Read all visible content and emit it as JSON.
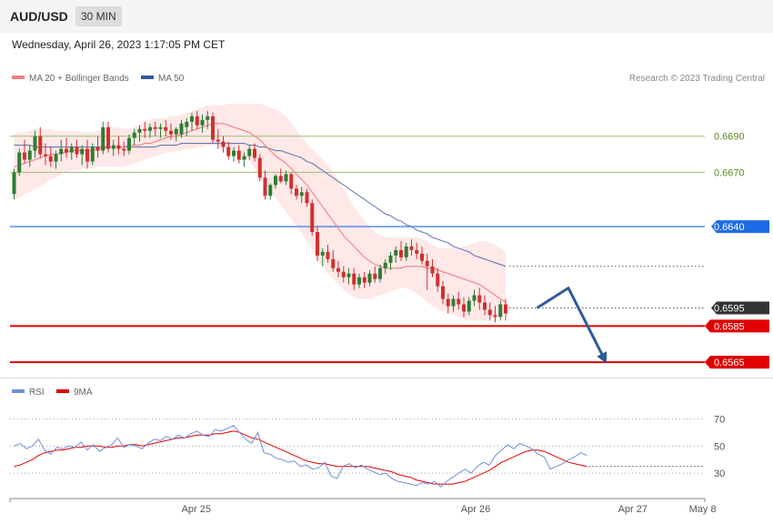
{
  "header": {
    "symbol": "AUD/USD",
    "timeframe": "30 MIN"
  },
  "timestamp": "Wednesday, April 26, 2023 1:17:05 PM CET",
  "legend": {
    "ma20_label": "MA 20 + Bollinger Bands",
    "ma50_label": "MA 50",
    "rsi_label": "RSI",
    "ma9_label": "9MA"
  },
  "credit": "Research © 2023 Trading Central",
  "colors": {
    "bull": "#2e7d32",
    "bear": "#d32f2f",
    "band_fill": "#fde0e0",
    "ma20": "#f08080",
    "ma50": "#5a6fa6",
    "resistance": "#a7c47f",
    "pivot": "#1e6be6",
    "support": "#e00000",
    "arrow": "#2f5b9b",
    "rsi": "#6f8fd8",
    "rsi_ma": "#e00000"
  },
  "chart_data": {
    "type": "candlestick",
    "y_range": [
      0.6555,
      0.6715
    ],
    "last_price": {
      "value": 0.6595,
      "label": "0.6595"
    },
    "levels": [
      {
        "value": 0.669,
        "label": "0.6690",
        "kind": "resistance"
      },
      {
        "value": 0.667,
        "label": "0.6670",
        "kind": "resistance"
      },
      {
        "value": 0.664,
        "label": "0.6640",
        "kind": "pivot"
      },
      {
        "value": 0.6585,
        "label": "0.6585",
        "kind": "support"
      },
      {
        "value": 0.6565,
        "label": "0.6565",
        "kind": "support"
      }
    ],
    "x_labels": [
      {
        "label": "Apr 25",
        "index": 32
      },
      {
        "label": "Apr 26",
        "index": 80
      },
      {
        "label": "Apr 27",
        "index": 107
      },
      {
        "label": "May 8",
        "index": 119
      }
    ],
    "candles": [
      [
        0.6658,
        0.6672,
        0.6655,
        0.667
      ],
      [
        0.667,
        0.6683,
        0.6668,
        0.6681
      ],
      [
        0.6681,
        0.6688,
        0.6675,
        0.6677
      ],
      [
        0.6677,
        0.6685,
        0.6673,
        0.6682
      ],
      [
        0.6682,
        0.6693,
        0.6678,
        0.669
      ],
      [
        0.669,
        0.6695,
        0.6678,
        0.668
      ],
      [
        0.668,
        0.6686,
        0.6674,
        0.6679
      ],
      [
        0.6679,
        0.6684,
        0.6673,
        0.6676
      ],
      [
        0.6676,
        0.6682,
        0.6672,
        0.668
      ],
      [
        0.668,
        0.6688,
        0.6676,
        0.6683
      ],
      [
        0.6683,
        0.6689,
        0.6678,
        0.6681
      ],
      [
        0.6681,
        0.6686,
        0.6677,
        0.6684
      ],
      [
        0.6684,
        0.6688,
        0.6678,
        0.668
      ],
      [
        0.668,
        0.6685,
        0.6674,
        0.6683
      ],
      [
        0.6683,
        0.6688,
        0.6672,
        0.6676
      ],
      [
        0.6676,
        0.6686,
        0.6674,
        0.6684
      ],
      [
        0.6684,
        0.669,
        0.6678,
        0.6682
      ],
      [
        0.6682,
        0.6698,
        0.668,
        0.6695
      ],
      [
        0.6695,
        0.6698,
        0.6681,
        0.6683
      ],
      [
        0.6683,
        0.6688,
        0.6679,
        0.6685
      ],
      [
        0.6685,
        0.669,
        0.668,
        0.6683
      ],
      [
        0.6683,
        0.6687,
        0.6679,
        0.6682
      ],
      [
        0.6682,
        0.6691,
        0.668,
        0.6689
      ],
      [
        0.6689,
        0.6694,
        0.6685,
        0.6692
      ],
      [
        0.6692,
        0.6696,
        0.6687,
        0.6694
      ],
      [
        0.6694,
        0.6698,
        0.6689,
        0.6693
      ],
      [
        0.6693,
        0.6697,
        0.6689,
        0.6695
      ],
      [
        0.6695,
        0.6698,
        0.669,
        0.6694
      ],
      [
        0.6694,
        0.6697,
        0.6689,
        0.6695
      ],
      [
        0.6695,
        0.6699,
        0.669,
        0.6693
      ],
      [
        0.6693,
        0.6697,
        0.6688,
        0.6691
      ],
      [
        0.6691,
        0.6695,
        0.6687,
        0.6694
      ],
      [
        0.6691,
        0.6699,
        0.6689,
        0.6697
      ],
      [
        0.6695,
        0.67,
        0.669,
        0.6698
      ],
      [
        0.6698,
        0.6703,
        0.6693,
        0.6701
      ],
      [
        0.6701,
        0.6704,
        0.6694,
        0.6696
      ],
      [
        0.6696,
        0.6702,
        0.6692,
        0.6699
      ],
      [
        0.6699,
        0.6704,
        0.6694,
        0.6701
      ],
      [
        0.6701,
        0.6703,
        0.6686,
        0.6688
      ],
      [
        0.6688,
        0.6694,
        0.6683,
        0.6687
      ],
      [
        0.6687,
        0.669,
        0.6681,
        0.6684
      ],
      [
        0.6684,
        0.6687,
        0.6677,
        0.6679
      ],
      [
        0.6679,
        0.6684,
        0.6676,
        0.6682
      ],
      [
        0.6682,
        0.6685,
        0.6675,
        0.6677
      ],
      [
        0.6677,
        0.6681,
        0.6673,
        0.6679
      ],
      [
        0.6679,
        0.6685,
        0.6677,
        0.6683
      ],
      [
        0.6683,
        0.6686,
        0.6676,
        0.6678
      ],
      [
        0.6678,
        0.668,
        0.6665,
        0.6667
      ],
      [
        0.6667,
        0.6671,
        0.6655,
        0.6657
      ],
      [
        0.6657,
        0.6664,
        0.6655,
        0.6663
      ],
      [
        0.6663,
        0.6669,
        0.6661,
        0.6668
      ],
      [
        0.6668,
        0.6672,
        0.6664,
        0.6665
      ],
      [
        0.6665,
        0.6671,
        0.6663,
        0.6669
      ],
      [
        0.6669,
        0.667,
        0.6658,
        0.6661
      ],
      [
        0.6661,
        0.6663,
        0.6655,
        0.6657
      ],
      [
        0.6657,
        0.6662,
        0.6653,
        0.6659
      ],
      [
        0.6659,
        0.6661,
        0.6651,
        0.6653
      ],
      [
        0.6653,
        0.6655,
        0.6635,
        0.6637
      ],
      [
        0.6637,
        0.664,
        0.6621,
        0.6624
      ],
      [
        0.6624,
        0.6628,
        0.6618,
        0.6626
      ],
      [
        0.6626,
        0.663,
        0.662,
        0.6622
      ],
      [
        0.6622,
        0.6627,
        0.6615,
        0.6617
      ],
      [
        0.6617,
        0.6621,
        0.6612,
        0.6615
      ],
      [
        0.6615,
        0.6618,
        0.6609,
        0.6612
      ],
      [
        0.6612,
        0.6617,
        0.6608,
        0.6614
      ],
      [
        0.6614,
        0.6617,
        0.6605,
        0.6608
      ],
      [
        0.6608,
        0.6614,
        0.6606,
        0.6612
      ],
      [
        0.6612,
        0.6615,
        0.6606,
        0.6609
      ],
      [
        0.6609,
        0.6616,
        0.6607,
        0.6614
      ],
      [
        0.6614,
        0.6618,
        0.6609,
        0.6611
      ],
      [
        0.6611,
        0.6619,
        0.6609,
        0.6617
      ],
      [
        0.6617,
        0.6622,
        0.6614,
        0.662
      ],
      [
        0.662,
        0.6626,
        0.6616,
        0.6624
      ],
      [
        0.6624,
        0.6629,
        0.662,
        0.6627
      ],
      [
        0.6627,
        0.6632,
        0.6621,
        0.6623
      ],
      [
        0.6623,
        0.6631,
        0.6621,
        0.6629
      ],
      [
        0.6629,
        0.6633,
        0.6624,
        0.6627
      ],
      [
        0.6627,
        0.6631,
        0.6622,
        0.6625
      ],
      [
        0.6625,
        0.6629,
        0.6619,
        0.6621
      ],
      [
        0.6621,
        0.6625,
        0.6605,
        0.6618
      ],
      [
        0.6618,
        0.6622,
        0.6612,
        0.6614
      ],
      [
        0.6614,
        0.6617,
        0.6604,
        0.6607
      ],
      [
        0.6607,
        0.661,
        0.6597,
        0.66
      ],
      [
        0.66,
        0.6603,
        0.6592,
        0.6596
      ],
      [
        0.6596,
        0.6602,
        0.6593,
        0.66
      ],
      [
        0.66,
        0.6604,
        0.6594,
        0.6597
      ],
      [
        0.6597,
        0.6601,
        0.659,
        0.6593
      ],
      [
        0.6593,
        0.6601,
        0.6591,
        0.6599
      ],
      [
        0.6599,
        0.6605,
        0.6596,
        0.6602
      ],
      [
        0.6602,
        0.6606,
        0.6594,
        0.6598
      ],
      [
        0.6598,
        0.6602,
        0.6591,
        0.6594
      ],
      [
        0.6594,
        0.6598,
        0.6588,
        0.6591
      ],
      [
        0.6591,
        0.6596,
        0.6587,
        0.659
      ],
      [
        0.659,
        0.6599,
        0.6588,
        0.6597
      ],
      [
        0.6597,
        0.66,
        0.6588,
        0.6592
      ]
    ],
    "ma20": [
      0.6673,
      0.6674,
      0.6675,
      0.6676,
      0.6677,
      0.6678,
      0.6679,
      0.668,
      0.668,
      0.6681,
      0.6681,
      0.6682,
      0.6682,
      0.6682,
      0.6682,
      0.6682,
      0.6683,
      0.6683,
      0.6684,
      0.6684,
      0.6684,
      0.6684,
      0.6685,
      0.6685,
      0.6685,
      0.6686,
      0.6686,
      0.6687,
      0.6688,
      0.6689,
      0.669,
      0.669,
      0.6691,
      0.6692,
      0.6693,
      0.6694,
      0.6695,
      0.6696,
      0.6697,
      0.6697,
      0.6697,
      0.6696,
      0.6695,
      0.6694,
      0.6693,
      0.6692,
      0.669,
      0.6688,
      0.6685,
      0.6682,
      0.6679,
      0.6677,
      0.6675,
      0.6672,
      0.6669,
      0.6666,
      0.6663,
      0.6659,
      0.6655,
      0.6651,
      0.6647,
      0.6643,
      0.6639,
      0.6635,
      0.6632,
      0.6629,
      0.6626,
      0.6623,
      0.6621,
      0.6619,
      0.6618,
      0.6617,
      0.6617,
      0.6617,
      0.6617,
      0.6618,
      0.6618,
      0.6618,
      0.6618,
      0.6617,
      0.6617,
      0.6616,
      0.6615,
      0.6614,
      0.6613,
      0.6612,
      0.6611,
      0.661,
      0.6609,
      0.6608,
      0.6606,
      0.6604,
      0.6602,
      0.66,
      0.6598
    ],
    "ma50": [
      0.6685,
      0.6685,
      0.6685,
      0.6685,
      0.6684,
      0.6684,
      0.6684,
      0.6684,
      0.6684,
      0.6684,
      0.6684,
      0.6684,
      0.6684,
      0.6684,
      0.6684,
      0.6684,
      0.6684,
      0.6684,
      0.6684,
      0.6684,
      0.6684,
      0.6684,
      0.6684,
      0.6684,
      0.6684,
      0.6684,
      0.6684,
      0.6684,
      0.6685,
      0.6685,
      0.6685,
      0.6685,
      0.6686,
      0.6686,
      0.6686,
      0.6686,
      0.6686,
      0.6686,
      0.6686,
      0.6686,
      0.6686,
      0.6686,
      0.6686,
      0.6686,
      0.6686,
      0.6685,
      0.6685,
      0.6684,
      0.6684,
      0.6683,
      0.6682,
      0.6682,
      0.6681,
      0.668,
      0.6679,
      0.6678,
      0.6676,
      0.6675,
      0.6673,
      0.6671,
      0.6669,
      0.6667,
      0.6665,
      0.6663,
      0.6661,
      0.6659,
      0.6657,
      0.6655,
      0.6653,
      0.6651,
      0.6649,
      0.6647,
      0.6646,
      0.6644,
      0.6643,
      0.6641,
      0.664,
      0.6638,
      0.6637,
      0.6636,
      0.6634,
      0.6633,
      0.6632,
      0.6631,
      0.6629,
      0.6628,
      0.6627,
      0.6626,
      0.6624,
      0.6623,
      0.6622,
      0.6621,
      0.662,
      0.6619,
      0.6618
    ],
    "bb_upper": [
      0.6691,
      0.6692,
      0.6692,
      0.6693,
      0.6694,
      0.6694,
      0.6694,
      0.6694,
      0.6693,
      0.6693,
      0.6693,
      0.6693,
      0.6693,
      0.6692,
      0.6692,
      0.6692,
      0.6693,
      0.6694,
      0.6695,
      0.6695,
      0.6695,
      0.6694,
      0.6694,
      0.6695,
      0.6696,
      0.6698,
      0.6699,
      0.67,
      0.67,
      0.67,
      0.6701,
      0.6701,
      0.6702,
      0.6703,
      0.6704,
      0.6705,
      0.6706,
      0.6707,
      0.6707,
      0.6707,
      0.6707,
      0.6708,
      0.6708,
      0.6708,
      0.6708,
      0.6708,
      0.6708,
      0.6708,
      0.6707,
      0.6706,
      0.6705,
      0.6703,
      0.6701,
      0.6697,
      0.6693,
      0.669,
      0.6686,
      0.6683,
      0.668,
      0.6677,
      0.6674,
      0.667,
      0.6666,
      0.6661,
      0.6656,
      0.6651,
      0.6647,
      0.6643,
      0.664,
      0.6637,
      0.6635,
      0.6634,
      0.6634,
      0.6634,
      0.6634,
      0.6634,
      0.6634,
      0.6634,
      0.6633,
      0.6632,
      0.663,
      0.6628,
      0.6628,
      0.6628,
      0.6628,
      0.6628,
      0.6629,
      0.663,
      0.6631,
      0.6632,
      0.6632,
      0.6631,
      0.663,
      0.6628,
      0.6626
    ],
    "bb_lower": [
      0.6655,
      0.6656,
      0.6658,
      0.6659,
      0.6661,
      0.6662,
      0.6664,
      0.6666,
      0.6667,
      0.6669,
      0.667,
      0.6671,
      0.6671,
      0.6672,
      0.6672,
      0.6672,
      0.6673,
      0.6673,
      0.6673,
      0.6673,
      0.6673,
      0.6673,
      0.6674,
      0.6675,
      0.6676,
      0.6677,
      0.6678,
      0.6679,
      0.668,
      0.6681,
      0.6681,
      0.6682,
      0.6682,
      0.6683,
      0.6683,
      0.6684,
      0.6684,
      0.6685,
      0.6685,
      0.6685,
      0.6684,
      0.6683,
      0.6682,
      0.668,
      0.6678,
      0.6676,
      0.6672,
      0.6668,
      0.6664,
      0.666,
      0.6656,
      0.6652,
      0.6648,
      0.6644,
      0.664,
      0.6636,
      0.6632,
      0.6627,
      0.6622,
      0.6618,
      0.6614,
      0.6611,
      0.6608,
      0.6605,
      0.6603,
      0.6601,
      0.66,
      0.66,
      0.66,
      0.6601,
      0.6602,
      0.6603,
      0.6604,
      0.6605,
      0.6606,
      0.6606,
      0.6605,
      0.6603,
      0.6601,
      0.6598,
      0.6596,
      0.6594,
      0.6593,
      0.6592,
      0.6591,
      0.659,
      0.6589,
      0.6588,
      0.6588,
      0.6588,
      0.6588,
      0.6589,
      0.659,
      0.6591,
      0.6592
    ],
    "forecast_path": [
      [
        100,
        0.6595
      ],
      [
        106,
        0.6606
      ],
      [
        113,
        0.6566
      ]
    ],
    "rsi": {
      "y_range": [
        10,
        85
      ],
      "ticks": [
        70,
        50,
        30
      ],
      "rsi": [
        50,
        52,
        48,
        50,
        55,
        47,
        44,
        49,
        48,
        50,
        49,
        53,
        47,
        51,
        46,
        49,
        51,
        56,
        49,
        51,
        50,
        48,
        52,
        55,
        54,
        57,
        55,
        58,
        56,
        59,
        61,
        58,
        57,
        62,
        61,
        63,
        65,
        60,
        55,
        52,
        60,
        45,
        44,
        41,
        40,
        38,
        39,
        35,
        36,
        33,
        34,
        38,
        28,
        26,
        35,
        37,
        34,
        36,
        33,
        31,
        29,
        30,
        26,
        24,
        23,
        22,
        21,
        23,
        22,
        24,
        20,
        24,
        27,
        30,
        33,
        30,
        35,
        38,
        36,
        43,
        47,
        51,
        48,
        52,
        50,
        48,
        44,
        42,
        33,
        35,
        37,
        40,
        42,
        45,
        43
      ],
      "ma9": [
        35,
        36,
        38,
        40,
        43,
        45,
        46,
        47,
        47,
        48,
        49,
        49,
        50,
        50,
        50,
        49,
        49,
        50,
        50,
        51,
        51,
        50,
        51,
        52,
        53,
        54,
        55,
        56,
        56,
        57,
        58,
        58,
        58,
        59,
        59,
        60,
        61,
        60,
        58,
        56,
        55,
        53,
        51,
        49,
        47,
        45,
        43,
        41,
        39,
        38,
        37,
        37,
        36,
        35,
        35,
        35,
        35,
        35,
        35,
        34,
        33,
        32,
        31,
        29,
        28,
        27,
        25,
        24,
        23,
        22,
        22,
        22,
        22,
        23,
        24,
        26,
        28,
        30,
        32,
        35,
        38,
        40,
        42,
        44,
        46,
        47,
        47,
        46,
        44,
        42,
        40,
        38,
        37,
        36,
        35
      ]
    }
  }
}
